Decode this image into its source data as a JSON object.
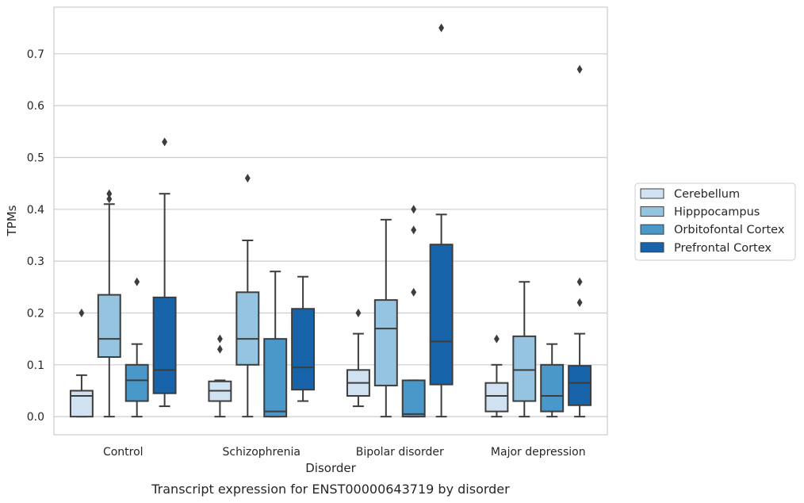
{
  "chart_data": {
    "type": "boxplot",
    "caption": "Transcript expression for ENST00000643719 by disorder",
    "xlabel": "Disorder",
    "ylabel": "TPMs",
    "ylim": [
      -0.035,
      0.79
    ],
    "yticks": [
      0.0,
      0.1,
      0.2,
      0.3,
      0.4,
      0.5,
      0.6,
      0.7
    ],
    "ytick_labels": [
      "0.0",
      "0.1",
      "0.2",
      "0.3",
      "0.4",
      "0.5",
      "0.6",
      "0.7"
    ],
    "grid": "horizontal",
    "legend_placement": "right",
    "categories": [
      "Control",
      "Schizophrenia",
      "Bipolar disorder",
      "Major depression"
    ],
    "series": [
      {
        "name": "Cerebellum",
        "color": "#d0e1f2",
        "boxes": [
          {
            "whislo": 0.0,
            "q1": 0.0,
            "med": 0.04,
            "q3": 0.05,
            "whishi": 0.08,
            "fliers": [
              0.2
            ]
          },
          {
            "whislo": 0.0,
            "q1": 0.03,
            "med": 0.05,
            "q3": 0.068,
            "whishi": 0.07,
            "fliers": [
              0.13,
              0.15
            ]
          },
          {
            "whislo": 0.02,
            "q1": 0.04,
            "med": 0.065,
            "q3": 0.09,
            "whishi": 0.16,
            "fliers": [
              0.2
            ]
          },
          {
            "whislo": 0.0,
            "q1": 0.01,
            "med": 0.04,
            "q3": 0.065,
            "whishi": 0.1,
            "fliers": [
              0.15
            ]
          }
        ]
      },
      {
        "name": "Hipppocampus",
        "color": "#94c4df",
        "boxes": [
          {
            "whislo": 0.0,
            "q1": 0.115,
            "med": 0.15,
            "q3": 0.235,
            "whishi": 0.41,
            "fliers": [
              0.42,
              0.43
            ]
          },
          {
            "whislo": 0.0,
            "q1": 0.1,
            "med": 0.15,
            "q3": 0.24,
            "whishi": 0.34,
            "fliers": [
              0.46
            ]
          },
          {
            "whislo": 0.0,
            "q1": 0.06,
            "med": 0.17,
            "q3": 0.225,
            "whishi": 0.38,
            "fliers": []
          },
          {
            "whislo": 0.0,
            "q1": 0.03,
            "med": 0.09,
            "q3": 0.155,
            "whishi": 0.26,
            "fliers": []
          }
        ]
      },
      {
        "name": "Orbitofontal Cortex",
        "color": "#4a98c9",
        "boxes": [
          {
            "whislo": 0.0,
            "q1": 0.03,
            "med": 0.07,
            "q3": 0.1,
            "whishi": 0.14,
            "fliers": [
              0.26
            ]
          },
          {
            "whislo": 0.0,
            "q1": 0.0,
            "med": 0.01,
            "q3": 0.15,
            "whishi": 0.28,
            "fliers": []
          },
          {
            "whislo": 0.0,
            "q1": 0.0,
            "med": 0.005,
            "q3": 0.07,
            "whishi": 0.07,
            "fliers": [
              0.24,
              0.36,
              0.4
            ]
          },
          {
            "whislo": 0.0,
            "q1": 0.01,
            "med": 0.04,
            "q3": 0.1,
            "whishi": 0.14,
            "fliers": []
          }
        ]
      },
      {
        "name": "Prefrontal Cortex",
        "color": "#1764ab",
        "boxes": [
          {
            "whislo": 0.02,
            "q1": 0.045,
            "med": 0.09,
            "q3": 0.23,
            "whishi": 0.43,
            "fliers": [
              0.53
            ]
          },
          {
            "whislo": 0.03,
            "q1": 0.052,
            "med": 0.095,
            "q3": 0.208,
            "whishi": 0.27,
            "fliers": []
          },
          {
            "whislo": 0.0,
            "q1": 0.062,
            "med": 0.145,
            "q3": 0.332,
            "whishi": 0.39,
            "fliers": [
              0.75
            ]
          },
          {
            "whislo": 0.0,
            "q1": 0.022,
            "med": 0.065,
            "q3": 0.098,
            "whishi": 0.16,
            "fliers": [
              0.22,
              0.26,
              0.67
            ]
          }
        ]
      }
    ]
  }
}
